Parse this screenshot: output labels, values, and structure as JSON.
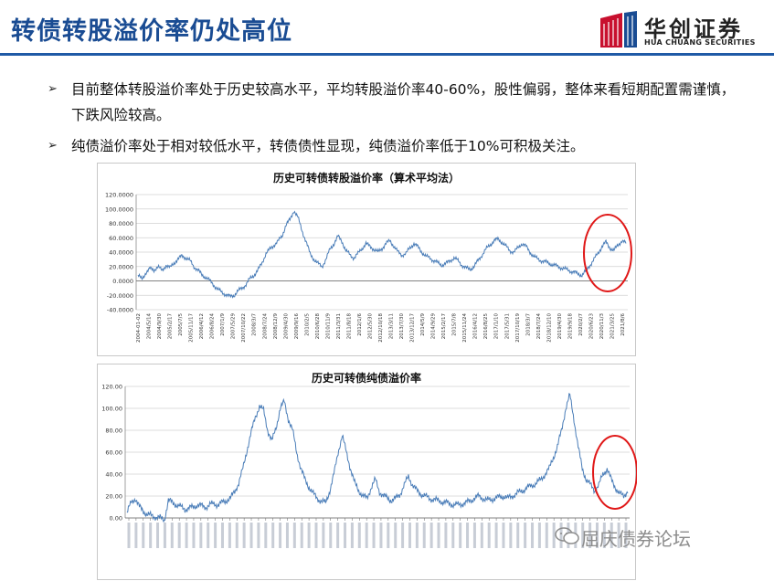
{
  "header": {
    "title": "转债转股溢价率仍处高位",
    "logo_cn": "华创证券",
    "logo_en": "HUA CHUANG SECURITIES",
    "accent_color": "#1a4c93",
    "logo_red": "#c8102e"
  },
  "bullets": [
    "目前整体转股溢价率处于历史较高水平，平均转股溢价率40-60%，股性偏弱，整体来看短期配置需谨慎，下跌风险较高。",
    "纯债溢价率处于相对较低水平，转债债性显现，纯债溢价率低于10%可积极关注。"
  ],
  "watermark": "屈庆债券论坛",
  "chart_data": [
    {
      "type": "line",
      "title": "历史可转债转股溢价率（算术平均法）",
      "xlabel": "",
      "ylabel": "",
      "ylim": [
        -40,
        120
      ],
      "yticks": [
        "120.0000",
        "100.0000",
        "80.0000",
        "60.0000",
        "40.0000",
        "20.0000",
        "0.0000",
        "-20.0000",
        "-40.0000"
      ],
      "xticks": [
        "2004-01-02",
        "2004/5/14",
        "2004/9/30",
        "2005/2/17",
        "2005/7/5",
        "2005/11/17",
        "2006/4/12",
        "2006/8/24",
        "2007/1/9",
        "2007/5/29",
        "2007/10/22",
        "2008/3/7",
        "2008/7/24",
        "2008/12/9",
        "2009/4/30",
        "2009/9/16",
        "2010/2/5",
        "2010/6/28",
        "2010/11/9",
        "2011/3/31",
        "2011/8/18",
        "2012/1/6",
        "2012/5/30",
        "2012/10/18",
        "2013/3/11",
        "2013/7/30",
        "2013/12/17",
        "2014/5/9",
        "2014/9/29",
        "2015/2/17",
        "2015/7/8",
        "2015/11/24",
        "2016/4/12",
        "2016/8/25",
        "2017/1/10",
        "2017/5/31",
        "2017/10/19",
        "2018/3/7",
        "2018/7/24",
        "2018/12/10",
        "2019/4/30",
        "2019/9/18",
        "2020/2/7",
        "2020/6/23",
        "2020/11/3",
        "2021/3/25",
        "2021/8/6"
      ],
      "series": [
        {
          "color": "#4a7db8",
          "values": [
            8,
            2,
            12,
            17,
            15,
            20,
            14,
            22,
            18,
            25,
            30,
            35,
            32,
            28,
            20,
            15,
            8,
            5,
            0,
            -6,
            -12,
            -16,
            -19,
            -22,
            -20,
            -14,
            -10,
            -5,
            3,
            8,
            15,
            25,
            38,
            44,
            50,
            55,
            62,
            78,
            85,
            98,
            88,
            70,
            55,
            38,
            30,
            24,
            20,
            30,
            44,
            52,
            62,
            55,
            42,
            36,
            32,
            38,
            45,
            52,
            48,
            44,
            40,
            45,
            52,
            56,
            48,
            40,
            36,
            38,
            46,
            52,
            47,
            40,
            34,
            32,
            28,
            25,
            22,
            24,
            28,
            32,
            28,
            22,
            18,
            16,
            20,
            28,
            36,
            44,
            50,
            56,
            58,
            54,
            48,
            42,
            40,
            46,
            52,
            48,
            40,
            34,
            30,
            28,
            26,
            24,
            22,
            20,
            18,
            16,
            14,
            12,
            10,
            8,
            14,
            22,
            30,
            38,
            48,
            54,
            46,
            42,
            50,
            56,
            52
          ]
        }
      ],
      "annotation": "red-ellipse-recent"
    },
    {
      "type": "line",
      "title": "历史可转债纯债溢价率",
      "xlabel": "",
      "ylabel": "",
      "ylim": [
        0,
        120
      ],
      "yticks": [
        "120.00",
        "100.00",
        "80.00",
        "60.00",
        "40.00",
        "20.00",
        "0.00"
      ],
      "series": [
        {
          "color": "#4a7db8",
          "values": [
            5,
            14,
            18,
            10,
            6,
            3,
            2,
            1,
            0,
            -2,
            16,
            14,
            12,
            10,
            8,
            9,
            10,
            12,
            11,
            10,
            12,
            13,
            12,
            14,
            16,
            18,
            24,
            32,
            45,
            62,
            78,
            92,
            102,
            98,
            80,
            70,
            82,
            100,
            106,
            90,
            80,
            60,
            45,
            35,
            28,
            22,
            18,
            15,
            14,
            25,
            40,
            60,
            75,
            60,
            45,
            32,
            25,
            20,
            18,
            28,
            35,
            24,
            20,
            18,
            16,
            18,
            22,
            30,
            38,
            30,
            25,
            22,
            20,
            18,
            17,
            16,
            15,
            14,
            13,
            12,
            12,
            13,
            14,
            16,
            18,
            20,
            18,
            16,
            17,
            18,
            19,
            20,
            18,
            20,
            22,
            24,
            26,
            28,
            30,
            32,
            35,
            40,
            45,
            55,
            65,
            80,
            100,
            112,
            90,
            65,
            45,
            35,
            30,
            25,
            30,
            40,
            45,
            35,
            28,
            22,
            20,
            25
          ]
        }
      ],
      "annotation": "red-ellipse-recent"
    }
  ]
}
